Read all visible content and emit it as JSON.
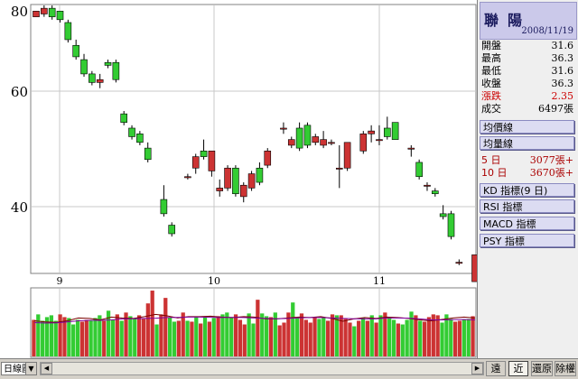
{
  "price_axis": {
    "ticks": [
      "80",
      "60",
      "40"
    ]
  },
  "date_axis": {
    "ticks": [
      "9",
      "10",
      "11"
    ]
  },
  "chart_data": [
    {
      "type": "candlestick",
      "ylim": [
        27,
        80
      ],
      "candles": [
        [
          78,
          79,
          78,
          79
        ],
        [
          78.5,
          80,
          78,
          79.5
        ],
        [
          79.5,
          80,
          77.5,
          78
        ],
        [
          79,
          79,
          77,
          77.5
        ],
        [
          77,
          77.5,
          73.5,
          74
        ],
        [
          73,
          74,
          70.5,
          71
        ],
        [
          70.5,
          71.5,
          67.5,
          68
        ],
        [
          68,
          68.5,
          66,
          66.5
        ],
        [
          66.5,
          68,
          65.5,
          67
        ],
        [
          70,
          70.5,
          69,
          69.5
        ],
        [
          70,
          70.5,
          66.5,
          67
        ],
        [
          61,
          61.5,
          59,
          59.5
        ],
        [
          58.5,
          59,
          56.5,
          57
        ],
        [
          57.5,
          58,
          55.5,
          56
        ],
        [
          55,
          56,
          52.5,
          53
        ],
        [
          null,
          null,
          null,
          null
        ],
        [
          46,
          48.5,
          43,
          43.5
        ],
        [
          41.5,
          42,
          39.5,
          40
        ],
        [
          null,
          null,
          null,
          null
        ],
        [
          50,
          50.5,
          49.5,
          50
        ],
        [
          51.5,
          54,
          50.5,
          53.5
        ],
        [
          54.5,
          56.5,
          53,
          53.5
        ],
        [
          51,
          54.5,
          50,
          54.5
        ],
        [
          47.5,
          49.5,
          46.5,
          48
        ],
        [
          48,
          52,
          47.5,
          51.5
        ],
        [
          51.5,
          52,
          46.5,
          47
        ],
        [
          46.5,
          49,
          45.5,
          48.5
        ],
        [
          48,
          51,
          47.5,
          50.5
        ],
        [
          51.5,
          52.5,
          48.5,
          49
        ],
        [
          52,
          55,
          51.5,
          54.5
        ],
        [
          null,
          null,
          null,
          null
        ],
        [
          58.5,
          59.5,
          57.5,
          58.5
        ],
        [
          55.5,
          57,
          55,
          56.5
        ],
        [
          58.5,
          59.5,
          54.5,
          55
        ],
        [
          59,
          59.5,
          55,
          55.5
        ],
        [
          56,
          57.5,
          55.5,
          57
        ],
        [
          55.5,
          58,
          55,
          56.5
        ],
        [
          56,
          56.5,
          55.5,
          56
        ],
        [
          51.5,
          55.5,
          48,
          51.5
        ],
        [
          51.5,
          56,
          51,
          56
        ],
        [
          null,
          null,
          null,
          null
        ],
        [
          54.5,
          58,
          54,
          57.5
        ],
        [
          57.5,
          59,
          56,
          58
        ],
        [
          56.5,
          59,
          55.5,
          56.5
        ],
        [
          58.5,
          60.5,
          56.5,
          57
        ],
        [
          59.5,
          59.5,
          57,
          56.5
        ],
        [
          null,
          null,
          null,
          null
        ],
        [
          55,
          55.5,
          53.5,
          55
        ],
        [
          52.5,
          53,
          49.5,
          50
        ],
        [
          48.5,
          49,
          47.5,
          48.5
        ],
        [
          47.5,
          48,
          46.5,
          47
        ],
        [
          43.5,
          45,
          42.5,
          43
        ],
        [
          43.5,
          44,
          39,
          39.5
        ],
        [
          35,
          35.5,
          34.5,
          35
        ],
        [
          null,
          null,
          null,
          null
        ],
        [
          31.6,
          36.3,
          31.6,
          36.3
        ]
      ]
    },
    {
      "type": "bar",
      "values": [
        4000,
        4600,
        3900,
        4300,
        4500,
        3900,
        4600,
        4300,
        4200,
        3500,
        4000,
        3800,
        4000,
        4000,
        4200,
        4500,
        3900,
        5000,
        4000,
        4600,
        3900,
        4800,
        4400,
        4200,
        4500,
        4100,
        5800,
        7200,
        3500,
        4600,
        6400,
        4300,
        3800,
        3900,
        4800,
        3900,
        3800,
        4300,
        3600,
        4300,
        3800,
        4200,
        4400,
        4600,
        4800,
        4300,
        4600,
        4000,
        3500,
        4700,
        3600,
        6200,
        4700,
        4400,
        4300,
        4800,
        3400,
        3700,
        4800,
        5900,
        4300,
        4700,
        4000,
        3700,
        4300,
        4100,
        4200,
        3900,
        4600,
        4500,
        4500,
        4100,
        3700,
        3300,
        3900,
        4200,
        3900,
        4500,
        3700,
        4500,
        4800,
        4300,
        4000,
        3600,
        3500,
        4000,
        4900,
        4500,
        3900,
        3800,
        4300,
        4600,
        4500,
        3700,
        4600,
        4100,
        3800,
        3900,
        4000,
        4100,
        4400
      ],
      "colors": [
        "red",
        "green",
        "green",
        "green",
        "green",
        "green",
        "red",
        "red",
        "green",
        "green",
        "green",
        "red",
        "red",
        "green",
        "green",
        "green",
        "red",
        "green",
        "green",
        "red",
        "green",
        "red",
        "green",
        "green",
        "red",
        "red",
        "red",
        "red",
        "green",
        "red",
        "red",
        "green",
        "green",
        "red",
        "red",
        "green",
        "red",
        "green",
        "red",
        "green",
        "red",
        "green",
        "red",
        "green",
        "green",
        "green",
        "red",
        "red",
        "red",
        "green",
        "green",
        "red",
        "green",
        "green",
        "red",
        "green",
        "red",
        "red",
        "red",
        "green",
        "green",
        "red",
        "red",
        "red",
        "red",
        "green",
        "green",
        "red",
        "red",
        "green",
        "red",
        "red",
        "red",
        "green",
        "red",
        "green",
        "red",
        "green",
        "red",
        "green",
        "red",
        "green",
        "green",
        "red",
        "green",
        "green",
        "green",
        "red",
        "green",
        "red",
        "red",
        "red",
        "red",
        "green",
        "green",
        "green",
        "red",
        "red",
        "green",
        "green",
        "red"
      ],
      "ma5": [
        3900,
        3780,
        3720,
        3900,
        4200,
        4150,
        4000,
        4300,
        4200,
        4150,
        4350,
        4600,
        4450,
        4200,
        4350,
        4350,
        4400,
        4300,
        4250,
        4350,
        4300,
        4100,
        4100,
        4200,
        4300,
        4250,
        4350,
        4150,
        3850,
        4100,
        4250,
        4150,
        4300,
        4250,
        4150,
        4000,
        3900,
        4050,
        4200,
        4300,
        4200
      ],
      "ma10": [
        3700,
        3650,
        3680,
        3780,
        3900,
        3950,
        3950,
        4000,
        4100,
        4120,
        4150,
        4180,
        4250,
        4270,
        4300,
        4300,
        4280,
        4250,
        4270,
        4250,
        4200,
        4150,
        4120,
        4150,
        4220,
        4250,
        4250,
        4200,
        4150,
        4120,
        4100,
        4100,
        4200,
        4200,
        4180,
        4100,
        4000,
        4000,
        4020,
        4050,
        4000
      ]
    }
  ],
  "panel": {
    "stock_name": "聯陽",
    "date": "2008/11/19",
    "quotes": [
      {
        "label": "開盤",
        "value": "31.6"
      },
      {
        "label": "最高",
        "value": "36.3"
      },
      {
        "label": "最低",
        "value": "31.6"
      },
      {
        "label": "收盤",
        "value": "36.3"
      },
      {
        "label": "漲跌",
        "value": "2.35"
      },
      {
        "label": "成交",
        "value": "6497張"
      }
    ],
    "price_ma_button": "均價線",
    "volume_ma_button": "均量線",
    "vol_ma": [
      {
        "label": "5 日",
        "value": "3077張+"
      },
      {
        "label": "10 日",
        "value": "3670張+"
      }
    ],
    "indicator_buttons": [
      "KD 指標(9 日)",
      "RSI 指標",
      "MACD 指標",
      "PSY 指標"
    ]
  },
  "toolbar": {
    "period_select": "日線圖",
    "buttons": [
      "遠",
      "近",
      "還原",
      "除權"
    ]
  },
  "colors": {
    "up": "#cc3333",
    "down": "#33cc33",
    "ma5": "#7a0000",
    "ma10": "#8000a0",
    "gridline": "#c8c8c8",
    "panel_title_bg": "#cbc9ea",
    "change_text": "#cc0000",
    "vol_ma_text": "#aa0000"
  }
}
